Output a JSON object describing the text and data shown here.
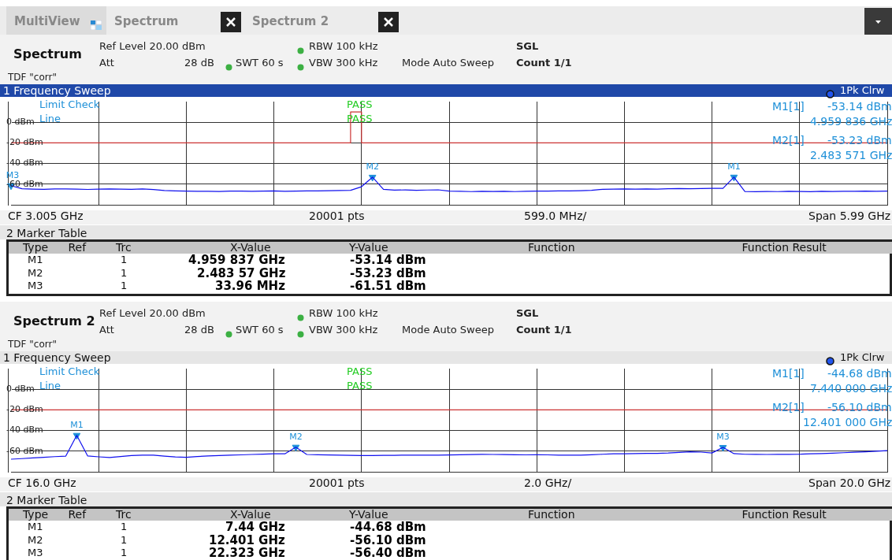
{
  "chart_data": [
    {
      "type": "line",
      "title": "1 Frequency Sweep",
      "subtitle": "Spectrum",
      "marker": "none",
      "grid": true,
      "tick_labels": "y",
      "categories": [
        null,
        null,
        null,
        null,
        null,
        null,
        null,
        null,
        null,
        null,
        null,
        null,
        null,
        null,
        null,
        null,
        null,
        null,
        null,
        null,
        null,
        null,
        null,
        null,
        null,
        null,
        null,
        null,
        null,
        null,
        null,
        null,
        null,
        null,
        null,
        null,
        null,
        null,
        null,
        null,
        null,
        null,
        null,
        null,
        null,
        null,
        null,
        null,
        null,
        null,
        null,
        null,
        null,
        null,
        null,
        null,
        null,
        null,
        null,
        null,
        null,
        null,
        null,
        null,
        null,
        null,
        null,
        null,
        null,
        null,
        null,
        null,
        null,
        null,
        null,
        null,
        null,
        null,
        null,
        null,
        null
      ],
      "ylim": [
        -80,
        20
      ],
      "yticks": [
        {
          "value": 0,
          "label": "0 dBm"
        },
        {
          "value": -20,
          "label": "-20 dBm"
        },
        {
          "value": -40,
          "label": "-40 dBm"
        },
        {
          "value": -60,
          "label": "-60 dBm"
        }
      ],
      "series": [
        {
          "type": "step",
          "color": "#cc3333",
          "values": [
            -20,
            -20,
            -20,
            -20,
            -20,
            -20,
            -20,
            -20,
            -20,
            -20,
            -20,
            -20,
            -20,
            -20,
            -20,
            -20,
            -20,
            -20,
            -20,
            -20,
            -20,
            -20,
            -20,
            -20,
            -20,
            -20,
            -20,
            -20,
            -20,
            -20,
            -20,
            -20,
            10,
            -20,
            -20,
            -20,
            -20,
            -20,
            -20,
            -20,
            -20,
            -20,
            -20,
            -20,
            -20,
            -20,
            -20,
            -20,
            -20,
            -20,
            -20,
            -20,
            -20,
            -20,
            -20,
            -20,
            -20,
            -20,
            -20,
            -20,
            -20,
            -20,
            -20,
            -20,
            -20,
            -20,
            -20,
            -20,
            -20,
            -20,
            -20,
            -20,
            -20,
            -20,
            -20,
            -20,
            -20,
            -20,
            -20,
            -20,
            -20
          ]
        },
        {
          "color": "#1010ee",
          "values": [
            -61.51,
            -64.5,
            -64.8,
            -65.0,
            -64.7,
            -64.6,
            -64.9,
            -65.1,
            -64.8,
            -64.6,
            -64.9,
            -65.0,
            -64.7,
            -65.2,
            -66.2,
            -66.6,
            -66.8,
            -67.0,
            -66.9,
            -67.1,
            -66.8,
            -66.7,
            -66.9,
            -66.8,
            -66.6,
            -66.9,
            -66.7,
            -66.5,
            -66.6,
            -66.4,
            -66.2,
            -66.0,
            -62.5,
            -53.23,
            -65.0,
            -65.8,
            -65.6,
            -65.9,
            -65.7,
            -65.5,
            -66.8,
            -67.0,
            -67.2,
            -67.0,
            -67.1,
            -66.9,
            -67.2,
            -67.0,
            -66.8,
            -66.7,
            -66.5,
            -66.6,
            -66.3,
            -66.0,
            -65.0,
            -64.8,
            -64.6,
            -64.9,
            -64.7,
            -64.8,
            -64.5,
            -64.3,
            -64.4,
            -64.2,
            -64.0,
            -64.1,
            -53.14,
            -67.2,
            -67.3,
            -67.1,
            -67.2,
            -67.0,
            -67.1,
            -67.3,
            -67.0,
            -67.1,
            -66.9,
            -67.0,
            -66.8,
            -66.9,
            -66.8
          ]
        },
        {
          "type": "scatter",
          "marker": "triangle",
          "color": "#1e90d8",
          "values": [
            -61.51,
            null,
            null,
            null,
            null,
            null,
            null,
            null,
            null,
            null,
            null,
            null,
            null,
            null,
            null,
            null,
            null,
            null,
            null,
            null,
            null,
            null,
            null,
            null,
            null,
            null,
            null,
            null,
            null,
            null,
            null,
            null,
            null,
            -53.23,
            null,
            null,
            null,
            null,
            null,
            null,
            null,
            null,
            null,
            null,
            null,
            null,
            null,
            null,
            null,
            null,
            null,
            null,
            null,
            null,
            null,
            null,
            null,
            null,
            null,
            null,
            null,
            null,
            null,
            null,
            null,
            null,
            -53.14,
            null,
            null,
            null,
            null,
            null,
            null,
            null,
            null,
            null,
            null,
            null,
            null,
            null,
            null
          ],
          "value_labels": [
            "M3",
            null,
            null,
            null,
            null,
            null,
            null,
            null,
            null,
            null,
            null,
            null,
            null,
            null,
            null,
            null,
            null,
            null,
            null,
            null,
            null,
            null,
            null,
            null,
            null,
            null,
            null,
            null,
            null,
            null,
            null,
            null,
            null,
            "M2",
            null,
            null,
            null,
            null,
            null,
            null,
            null,
            null,
            null,
            null,
            null,
            null,
            null,
            null,
            null,
            null,
            null,
            null,
            null,
            null,
            null,
            null,
            null,
            null,
            null,
            null,
            null,
            null,
            null,
            null,
            null,
            null,
            "M1",
            null,
            null,
            null,
            null,
            null,
            null,
            null,
            null,
            null,
            null,
            null,
            null,
            null,
            null
          ]
        }
      ],
      "annotations": [
        "Ref Level 20.00 dBm",
        "RBW 100 kHz",
        "SGL",
        "Att",
        "28 dB",
        "SWT 60 s",
        "VBW 300 kHz",
        "Mode Auto Sweep",
        "Count 1/1",
        "TDF \"corr\"",
        "1Pk Clrw",
        "Limit Check",
        "Line",
        "PASS",
        "PASS",
        "M1[1]",
        "-53.14 dBm",
        "4.959 836 GHz",
        "M2[1]",
        "-53.23 dBm",
        "2.483 571 GHz",
        "CF 3.005 GHz",
        "20001 pts",
        "599.0 MHz/",
        "Span 5.99 GHz",
        "2 Marker Table",
        "Type",
        "Ref",
        "Trc",
        "X-Value",
        "Y-Value",
        "Function",
        "Function Result",
        "M1",
        "1",
        "4.959 837 GHz",
        "-53.14 dBm",
        "M2",
        "1",
        "2.483 57 GHz",
        "-53.23 dBm",
        "M3",
        "1",
        "33.96 MHz",
        "-61.51 dBm",
        "MultiView",
        "Spectrum",
        "Spectrum 2"
      ]
    },
    {
      "type": "line",
      "title": "1 Frequency Sweep",
      "subtitle": "Spectrum 2",
      "marker": "none",
      "grid": true,
      "tick_labels": "y",
      "categories": [
        null,
        null,
        null,
        null,
        null,
        null,
        null,
        null,
        null,
        null,
        null,
        null,
        null,
        null,
        null,
        null,
        null,
        null,
        null,
        null,
        null,
        null,
        null,
        null,
        null,
        null,
        null,
        null,
        null,
        null,
        null,
        null,
        null,
        null,
        null,
        null,
        null,
        null,
        null,
        null,
        null,
        null,
        null,
        null,
        null,
        null,
        null,
        null,
        null,
        null,
        null,
        null,
        null,
        null,
        null,
        null,
        null,
        null,
        null,
        null,
        null,
        null,
        null,
        null,
        null,
        null,
        null,
        null,
        null,
        null,
        null,
        null,
        null,
        null,
        null,
        null,
        null,
        null,
        null,
        null,
        null
      ],
      "ylim": [
        -80,
        20
      ],
      "yticks": [
        {
          "value": 0,
          "label": "0 dBm"
        },
        {
          "value": -20,
          "label": "-20 dBm"
        },
        {
          "value": -40,
          "label": "-40 dBm"
        },
        {
          "value": -60,
          "label": "-60 dBm"
        }
      ],
      "ref_lines": [
        {
          "axis": "y",
          "value": -20,
          "color": "#cc3333"
        }
      ],
      "series": [
        {
          "color": "#1010ee",
          "values": [
            -67.8,
            -67.2,
            -66.5,
            -65.9,
            -65.3,
            -64.8,
            -44.68,
            -64.7,
            -65.5,
            -66.1,
            -65.2,
            -64.2,
            -63.9,
            -63.9,
            -64.8,
            -65.6,
            -66.0,
            -65.2,
            -64.6,
            -64.2,
            -63.9,
            -63.6,
            -63.2,
            -62.9,
            -62.6,
            -62.6,
            -56.1,
            -63.2,
            -63.5,
            -63.7,
            -63.9,
            -64.1,
            -64.3,
            -64.2,
            -64.1,
            -64.0,
            -63.9,
            -63.9,
            -63.8,
            -63.9,
            -63.7,
            -63.5,
            -63.3,
            -63.1,
            -63.2,
            -63.3,
            -63.5,
            -63.6,
            -63.5,
            -63.6,
            -63.8,
            -63.9,
            -63.9,
            -63.5,
            -63.0,
            -62.6,
            -62.5,
            -62.3,
            -62.2,
            -62.1,
            -61.8,
            -61.2,
            -60.6,
            -60.9,
            -61.8,
            -56.4,
            -62.4,
            -63.0,
            -63.1,
            -63.2,
            -63.1,
            -63.1,
            -63.0,
            -62.6,
            -62.3,
            -62.0,
            -61.5,
            -61.0,
            -60.6,
            -60.0,
            -59.5
          ]
        },
        {
          "type": "scatter",
          "marker": "triangle",
          "color": "#1e90d8",
          "values": [
            null,
            null,
            null,
            null,
            null,
            null,
            -44.68,
            null,
            null,
            null,
            null,
            null,
            null,
            null,
            null,
            null,
            null,
            null,
            null,
            null,
            null,
            null,
            null,
            null,
            null,
            null,
            -56.1,
            null,
            null,
            null,
            null,
            null,
            null,
            null,
            null,
            null,
            null,
            null,
            null,
            null,
            null,
            null,
            null,
            null,
            null,
            null,
            null,
            null,
            null,
            null,
            null,
            null,
            null,
            null,
            null,
            null,
            null,
            null,
            null,
            null,
            null,
            null,
            null,
            null,
            null,
            -56.4,
            null,
            null,
            null,
            null,
            null,
            null,
            null,
            null,
            null,
            null,
            null,
            null,
            null,
            null,
            null
          ],
          "value_labels": [
            null,
            null,
            null,
            null,
            null,
            null,
            "M1",
            null,
            null,
            null,
            null,
            null,
            null,
            null,
            null,
            null,
            null,
            null,
            null,
            null,
            null,
            null,
            null,
            null,
            null,
            null,
            "M2",
            null,
            null,
            null,
            null,
            null,
            null,
            null,
            null,
            null,
            null,
            null,
            null,
            null,
            null,
            null,
            null,
            null,
            null,
            null,
            null,
            null,
            null,
            null,
            null,
            null,
            null,
            null,
            null,
            null,
            null,
            null,
            null,
            null,
            null,
            null,
            null,
            null,
            null,
            "M3",
            null,
            null,
            null,
            null,
            null,
            null,
            null,
            null,
            null,
            null,
            null,
            null,
            null,
            null,
            null
          ]
        }
      ],
      "annotations": [
        "Ref Level 20.00 dBm",
        "RBW 100 kHz",
        "SGL",
        "Att",
        "28 dB",
        "SWT 60 s",
        "VBW 300 kHz",
        "Mode Auto Sweep",
        "Count 1/1",
        "TDF \"corr\"",
        "1Pk Clrw",
        "Limit Check",
        "Line",
        "PASS",
        "PASS",
        "M1[1]",
        "-44.68 dBm",
        "7.440 000 GHz",
        "M2[1]",
        "-56.10 dBm",
        "12.401 000 GHz",
        "CF 16.0 GHz",
        "20001 pts",
        "2.0 GHz/",
        "Span 20.0 GHz",
        "2 Marker Table",
        "Type",
        "Ref",
        "Trc",
        "X-Value",
        "Y-Value",
        "Function",
        "Function Result",
        "M1",
        "1",
        "7.44 GHz",
        "-44.68 dBm",
        "M2",
        "1",
        "12.401 GHz",
        "-56.10 dBm",
        "M3",
        "1",
        "22.323 GHz",
        "-56.40 dBm"
      ]
    }
  ]
}
